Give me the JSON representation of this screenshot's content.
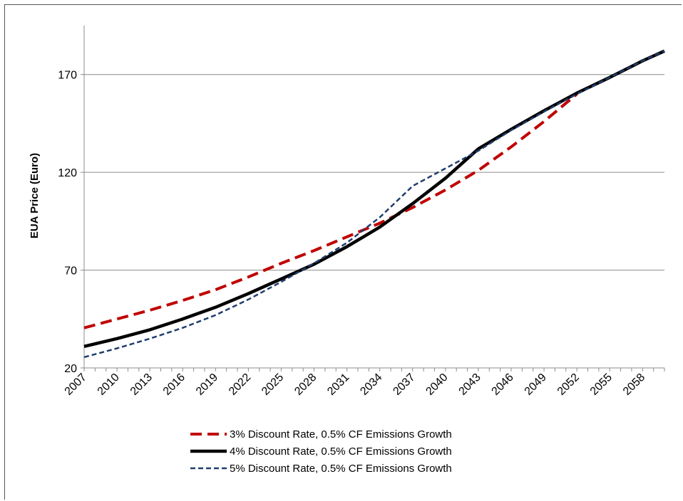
{
  "chart_data": {
    "type": "line",
    "title": "",
    "xlabel": "",
    "ylabel": "EUA Price  (Euro)",
    "ylim": [
      20,
      195
    ],
    "yticks": [
      20,
      70,
      120,
      170
    ],
    "xlim": [
      2007,
      2060
    ],
    "xticks": [
      2007,
      2010,
      2013,
      2016,
      2019,
      2022,
      2025,
      2028,
      2031,
      2034,
      2037,
      2040,
      2043,
      2046,
      2049,
      2052,
      2055,
      2058
    ],
    "grid": "horizontal",
    "legend_position": "bottom",
    "series": [
      {
        "name": "3% Discount Rate, 0.5% CF Emissions Growth",
        "color": "#c00000",
        "style": "dashed-long",
        "x": [
          2007,
          2010,
          2013,
          2016,
          2019,
          2022,
          2025,
          2028,
          2031,
          2034,
          2037,
          2040,
          2043,
          2046,
          2049,
          2052
        ],
        "y": [
          40.5,
          45,
          49.5,
          54.5,
          60,
          66.5,
          73.5,
          80,
          87,
          94,
          102,
          111,
          121,
          133,
          146,
          160
        ]
      },
      {
        "name": "4% Discount Rate, 0.5% CF Emissions Growth",
        "color": "#000000",
        "style": "solid-thick",
        "x": [
          2007,
          2010,
          2013,
          2016,
          2019,
          2022,
          2025,
          2028,
          2031,
          2034,
          2037,
          2040,
          2043,
          2046,
          2049,
          2052,
          2055,
          2058,
          2060
        ],
        "y": [
          31,
          35,
          39.5,
          45,
          51,
          58,
          65.5,
          73,
          82,
          92,
          104,
          117,
          132,
          142,
          151.5,
          160.5,
          168.5,
          177,
          182
        ]
      },
      {
        "name": "5% Discount Rate, 0.5% CF Emissions Growth",
        "color": "#1f3e6e",
        "style": "dashed-short",
        "x": [
          2007,
          2010,
          2013,
          2016,
          2019,
          2022,
          2025,
          2028,
          2031,
          2034,
          2037,
          2040,
          2043,
          2046,
          2049,
          2052,
          2055,
          2058,
          2060
        ],
        "y": [
          25.5,
          30,
          35,
          40.5,
          47,
          55,
          64,
          73.5,
          84,
          97,
          113,
          122,
          131,
          141.5,
          151,
          160,
          168.5,
          177,
          182
        ]
      }
    ]
  }
}
